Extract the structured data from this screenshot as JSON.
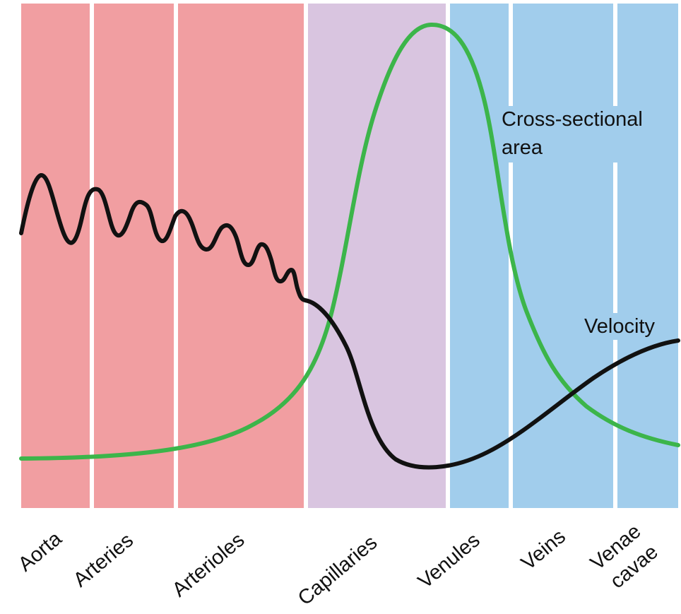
{
  "diagram": {
    "vessels": [
      {
        "id": "aorta",
        "lines": [
          "Aorta"
        ],
        "color": "#f19ea1"
      },
      {
        "id": "arteries",
        "lines": [
          "Arteries"
        ],
        "color": "#f19ea1"
      },
      {
        "id": "arterioles",
        "lines": [
          "Arterioles"
        ],
        "color": "#f19ea1"
      },
      {
        "id": "capillaries",
        "lines": [
          "Capillaries"
        ],
        "color": "#d9c5e0"
      },
      {
        "id": "venules",
        "lines": [
          "Venules"
        ],
        "color": "#a1cdec"
      },
      {
        "id": "veins",
        "lines": [
          "Veins"
        ],
        "color": "#a1cdec"
      },
      {
        "id": "venae-cavae",
        "lines": [
          "Venae",
          "cavae"
        ],
        "color": "#a1cdec"
      }
    ],
    "curves": {
      "cross_sectional_area": {
        "lines": [
          "Cross-sectional",
          "area"
        ],
        "color": "#3cb54a"
      },
      "velocity": {
        "lines": [
          "Velocity"
        ],
        "color": "#111111"
      }
    }
  }
}
